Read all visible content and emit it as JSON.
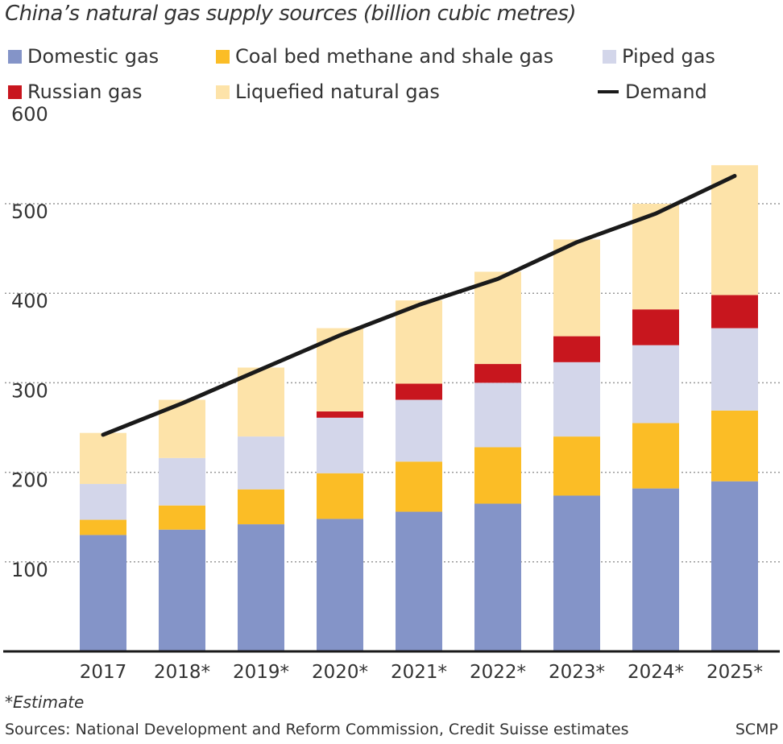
{
  "chart_data": {
    "type": "bar",
    "stacked": true,
    "title": "China’s natural gas supply sources (billion cubic metres)",
    "categories": [
      "2017",
      "2018*",
      "2019*",
      "2020*",
      "2021*",
      "2022*",
      "2023*",
      "2024*",
      "2025*"
    ],
    "series": [
      {
        "name": "Domestic gas",
        "color": "#8494c8",
        "values": [
          130,
          136,
          142,
          148,
          156,
          165,
          174,
          182,
          190
        ]
      },
      {
        "name": "Coal bed methane and shale gas",
        "color": "#fbbd26",
        "values": [
          17,
          27,
          39,
          51,
          56,
          63,
          66,
          73,
          79
        ]
      },
      {
        "name": "Piped gas",
        "color": "#d3d6ea",
        "values": [
          40,
          53,
          59,
          62,
          69,
          72,
          83,
          87,
          92
        ]
      },
      {
        "name": "Russian gas",
        "color": "#c8161e",
        "values": [
          0,
          0,
          0,
          7,
          18,
          21,
          29,
          40,
          37
        ]
      },
      {
        "name": "Liquefied natural gas",
        "color": "#fde3a9",
        "values": [
          57,
          65,
          77,
          93,
          93,
          103,
          108,
          118,
          145
        ]
      }
    ],
    "line": {
      "name": "Demand",
      "color": "#1a1a1a",
      "values": [
        242,
        277,
        315,
        353,
        387,
        416,
        457,
        489,
        531
      ]
    },
    "yticks": [
      100,
      200,
      300,
      400,
      500,
      600
    ],
    "ylim": [
      0,
      600
    ],
    "grid": true,
    "legend_placement": "top"
  },
  "footnote": "*Estimate",
  "sources": "Sources: National Development and Reform Commission, Credit Suisse estimates",
  "brand": "SCMP"
}
